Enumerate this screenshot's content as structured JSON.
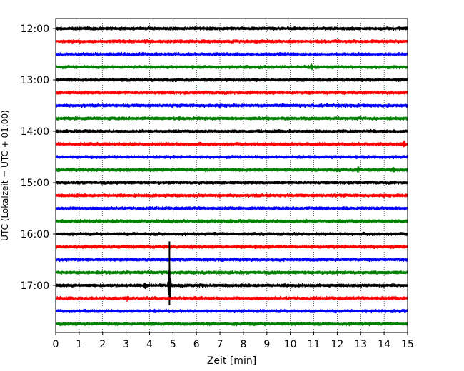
{
  "chart_data": {
    "type": "line",
    "title": "",
    "xlabel": "Zeit  [min]",
    "ylabel": "UTC (Lokalzeit = UTC + 01:00)",
    "xlim": [
      0,
      15
    ],
    "x_ticks": [
      "0",
      "1",
      "2",
      "3",
      "4",
      "5",
      "6",
      "7",
      "8",
      "9",
      "10",
      "11",
      "12",
      "13",
      "14",
      "15"
    ],
    "y_ticks": [
      "12:00",
      "13:00",
      "14:00",
      "15:00",
      "16:00",
      "17:00"
    ],
    "y_tick_times_hours": [
      12,
      13,
      14,
      15,
      16,
      17
    ],
    "trace_interval_minutes": 15,
    "first_trace_start": "12:00",
    "grid": "vertical-dotted",
    "legend": "none",
    "trace_colors": [
      "#000000",
      "#ff0000",
      "#0000ff",
      "#008000"
    ],
    "series": [
      {
        "start": "12:00",
        "color": "#000000"
      },
      {
        "start": "12:15",
        "color": "#ff0000"
      },
      {
        "start": "12:30",
        "color": "#0000ff"
      },
      {
        "start": "12:45",
        "color": "#008000",
        "events": [
          {
            "x_min": 10.9,
            "amp": 1.6
          }
        ]
      },
      {
        "start": "13:00",
        "color": "#000000"
      },
      {
        "start": "13:15",
        "color": "#ff0000"
      },
      {
        "start": "13:30",
        "color": "#0000ff"
      },
      {
        "start": "13:45",
        "color": "#008000"
      },
      {
        "start": "14:00",
        "color": "#000000"
      },
      {
        "start": "14:15",
        "color": "#ff0000",
        "events": [
          {
            "x_min": 14.85,
            "amp": 2.0
          }
        ]
      },
      {
        "start": "14:30",
        "color": "#0000ff"
      },
      {
        "start": "14:45",
        "color": "#008000",
        "events": [
          {
            "x_min": 12.9,
            "amp": 1.6
          },
          {
            "x_min": 14.4,
            "amp": 1.4
          }
        ]
      },
      {
        "start": "15:00",
        "color": "#000000"
      },
      {
        "start": "15:15",
        "color": "#ff0000"
      },
      {
        "start": "15:30",
        "color": "#0000ff"
      },
      {
        "start": "15:45",
        "color": "#008000"
      },
      {
        "start": "16:00",
        "color": "#000000"
      },
      {
        "start": "16:15",
        "color": "#ff0000"
      },
      {
        "start": "16:30",
        "color": "#0000ff"
      },
      {
        "start": "16:45",
        "color": "#008000"
      },
      {
        "start": "17:00",
        "color": "#000000",
        "events": [
          {
            "x_min": 3.8,
            "amp": 1.8
          },
          {
            "x_min": 4.85,
            "amp": 14
          }
        ]
      },
      {
        "start": "17:15",
        "color": "#ff0000",
        "events": [
          {
            "x_min": 3.05,
            "amp": 1.4
          }
        ]
      },
      {
        "start": "17:30",
        "color": "#0000ff"
      },
      {
        "start": "17:45",
        "color": "#008000"
      }
    ]
  }
}
